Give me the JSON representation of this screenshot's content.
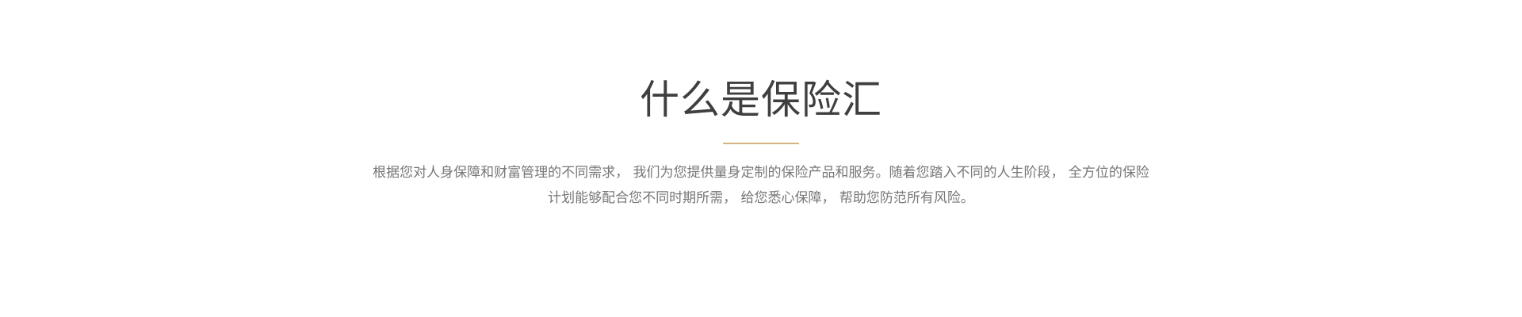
{
  "intro": {
    "title": "什么是保险汇",
    "accent_color": "#d6b47f",
    "description_lines": [
      "根据您对人身保障和财富管理的不同需求，  我们为您提供量身定制的保险产品和服务。随着您踏入不同的人生阶段，  全方位的保险",
      "计划能够配合您不同时期所需，  给您悉心保障，  帮助您防范所有风险。"
    ]
  }
}
